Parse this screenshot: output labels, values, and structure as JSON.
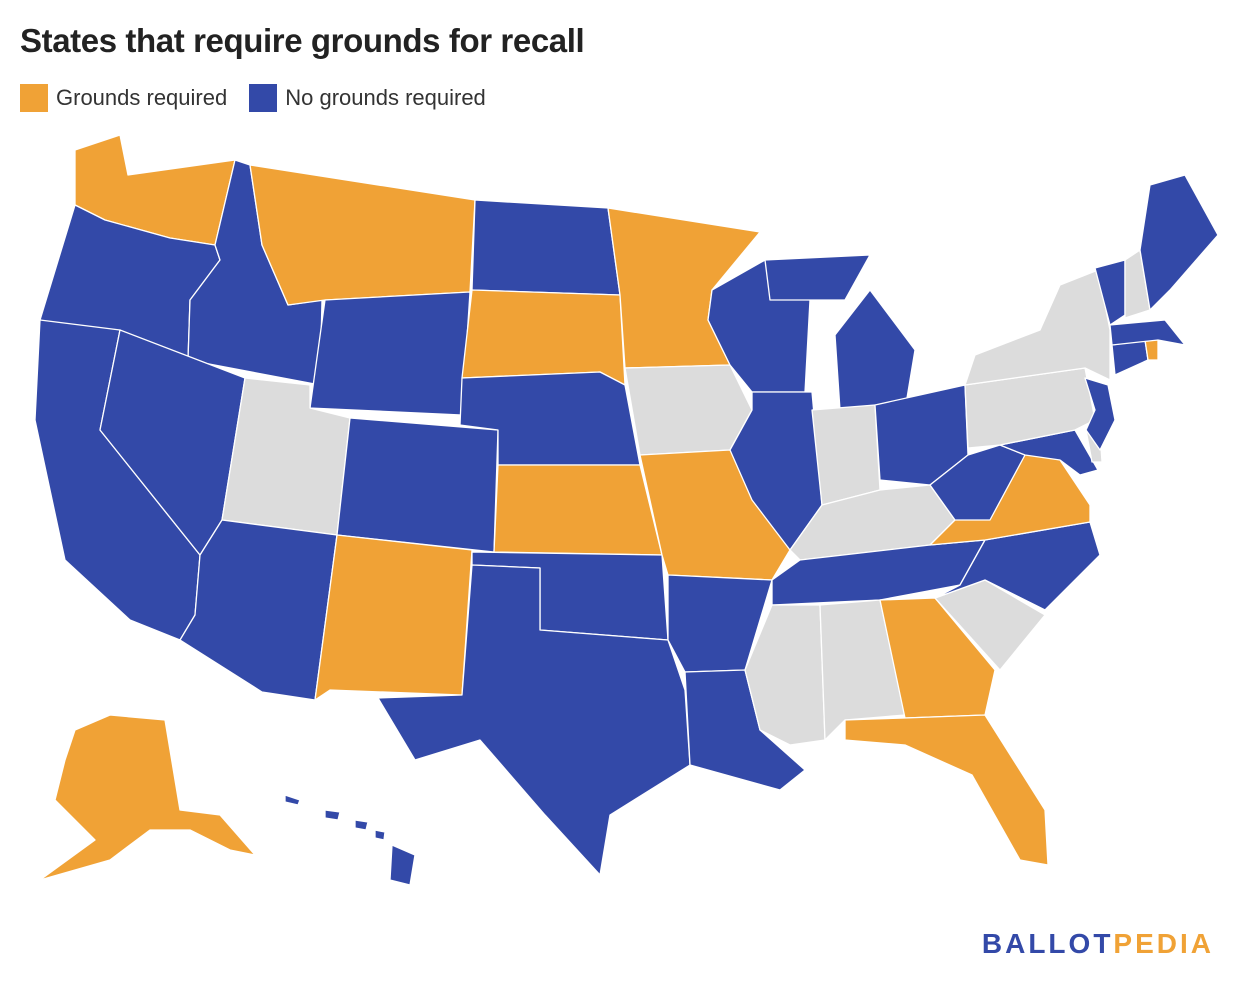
{
  "title": "States that require grounds for recall",
  "legend": [
    {
      "label": "Grounds required",
      "color": "#f0a236"
    },
    {
      "label": "No grounds required",
      "color": "#3349a8"
    }
  ],
  "colors": {
    "grounds": "#f0a236",
    "none": "#3349a8",
    "other": "#dcdcdc"
  },
  "states": {
    "WA": "grounds",
    "OR": "none",
    "CA": "none",
    "ID": "none",
    "NV": "none",
    "MT": "grounds",
    "WY": "none",
    "UT": "other",
    "AZ": "none",
    "CO": "none",
    "NM": "grounds",
    "ND": "none",
    "SD": "grounds",
    "NE": "none",
    "KS": "grounds",
    "OK": "none",
    "TX": "none",
    "MN": "grounds",
    "IA": "other",
    "MO": "grounds",
    "AR": "none",
    "LA": "none",
    "WI": "none",
    "IL": "none",
    "MI": "none",
    "IN": "other",
    "OH": "none",
    "KY": "other",
    "TN": "none",
    "MS": "other",
    "AL": "other",
    "GA": "grounds",
    "FL": "grounds",
    "SC": "other",
    "NC": "none",
    "VA": "grounds",
    "WV": "none",
    "MD": "none",
    "DE": "other",
    "PA": "other",
    "NJ": "none",
    "NY": "other",
    "CT": "none",
    "RI": "grounds",
    "MA": "none",
    "VT": "none",
    "NH": "other",
    "ME": "none",
    "AK": "grounds",
    "HI": "none"
  },
  "logo": {
    "part1": "BALLOT",
    "part2": "PEDIA",
    "color1": "#3349a8",
    "color2": "#f0a236"
  }
}
